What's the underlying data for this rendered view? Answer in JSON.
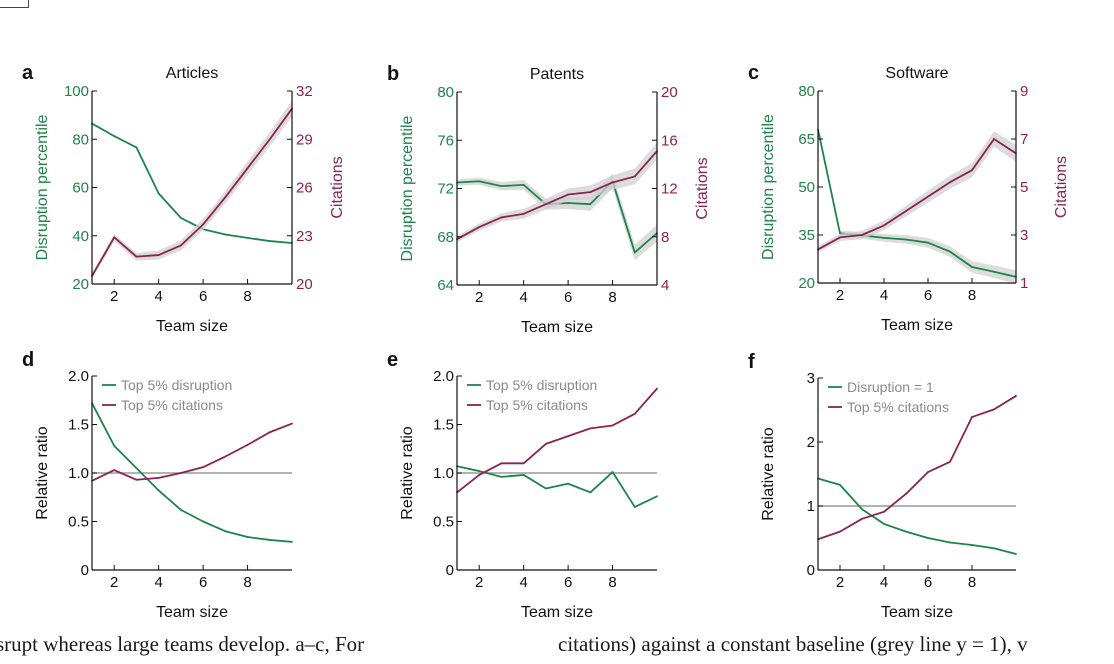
{
  "chart_data": [
    {
      "panel_label": "a",
      "type": "line",
      "title": "Articles",
      "xlabel": "Team size",
      "ylabel_left": "Disruption percentile",
      "ylabel_right": "Citations",
      "xlim": [
        1,
        10
      ],
      "xticks": [
        2,
        4,
        6,
        8
      ],
      "ylim_left": [
        20,
        100
      ],
      "yticks_left": [
        20,
        40,
        60,
        80,
        100
      ],
      "ylim_right": [
        20,
        32
      ],
      "yticks_right": [
        20,
        23,
        26,
        29,
        32
      ],
      "colors": {
        "left": "#1e8449",
        "right": "#8b2252",
        "band": "#d0d0d0"
      },
      "series": [
        {
          "axis": "left",
          "x": [
            1,
            2,
            3,
            4,
            5,
            6,
            7,
            8,
            9,
            10
          ],
          "values": [
            86.5,
            81.3,
            76.6,
            57.5,
            47.4,
            42.7,
            40.5,
            39.1,
            37.8,
            37.0
          ]
        },
        {
          "axis": "right",
          "x": [
            1,
            2,
            3,
            4,
            5,
            6,
            7,
            8,
            9,
            10
          ],
          "values": [
            20.5,
            22.9,
            21.7,
            21.8,
            22.4,
            23.7,
            25.4,
            27.2,
            29.0,
            30.9
          ],
          "band": 0.35
        }
      ]
    },
    {
      "panel_label": "b",
      "type": "line",
      "title": "Patents",
      "xlabel": "Team size",
      "ylabel_left": "Disruption percentile",
      "ylabel_right": "Citations",
      "xlim": [
        1,
        10
      ],
      "xticks": [
        2,
        4,
        6,
        8
      ],
      "ylim_left": [
        64,
        80
      ],
      "yticks_left": [
        64,
        68,
        72,
        76,
        80
      ],
      "ylim_right": [
        4,
        20
      ],
      "yticks_right": [
        4,
        8,
        12,
        16,
        20
      ],
      "colors": {
        "left": "#1e8449",
        "right": "#8b2252",
        "band": "#d0d0d0"
      },
      "series": [
        {
          "axis": "left",
          "x": [
            1,
            2,
            3,
            4,
            5,
            6,
            7,
            8,
            9,
            10
          ],
          "values": [
            72.5,
            72.6,
            72.2,
            72.3,
            70.7,
            70.8,
            70.7,
            72.6,
            66.7,
            68.3
          ],
          "band": 0.5
        },
        {
          "axis": "right",
          "x": [
            1,
            2,
            3,
            4,
            5,
            6,
            7,
            8,
            9,
            10
          ],
          "values": [
            7.8,
            8.8,
            9.6,
            9.9,
            10.7,
            11.5,
            11.7,
            12.5,
            13.0,
            15.1
          ],
          "band": 0.5
        }
      ]
    },
    {
      "panel_label": "c",
      "type": "line",
      "title": "Software",
      "xlabel": "Team size",
      "ylabel_left": "Disruption percentile",
      "ylabel_right": "Citations",
      "xlim": [
        1,
        10
      ],
      "xticks": [
        2,
        4,
        6,
        8
      ],
      "ylim_left": [
        20,
        80
      ],
      "yticks_left": [
        20,
        35,
        50,
        65,
        80
      ],
      "ylim_right": [
        1,
        9
      ],
      "yticks_right": [
        1,
        3,
        5,
        7,
        9
      ],
      "colors": {
        "left": "#1e8449",
        "right": "#8b2252",
        "band": "#d0d0d0"
      },
      "series": [
        {
          "axis": "left",
          "x": [
            1,
            2,
            3,
            4,
            5,
            6,
            7,
            8,
            9,
            10
          ],
          "values": [
            68.0,
            35.5,
            34.9,
            34.1,
            33.6,
            32.6,
            29.8,
            25.0,
            23.5,
            21.9
          ],
          "band": 1.5
        },
        {
          "axis": "right",
          "x": [
            1,
            2,
            3,
            4,
            5,
            6,
            7,
            8,
            9,
            10
          ],
          "values": [
            2.4,
            2.9,
            3.0,
            3.4,
            4.0,
            4.6,
            5.2,
            5.7,
            7.0,
            6.4
          ],
          "band": 0.25
        }
      ]
    },
    {
      "panel_label": "d",
      "type": "line",
      "xlabel": "Team size",
      "ylabel": "Relative ratio",
      "xlim": [
        1,
        10
      ],
      "xticks": [
        2,
        4,
        6,
        8
      ],
      "ylim": [
        0,
        2.0
      ],
      "yticks": [
        0,
        0.5,
        1.0,
        1.5,
        2.0
      ],
      "ytick_labels": [
        "0",
        "0.5",
        "1.0",
        "1.5",
        "2.0"
      ],
      "legend_position": "top-left",
      "baseline": 1.0,
      "colors": {
        "green": "#1e8449",
        "purple": "#8b2252",
        "baseline": "#9a9a9a"
      },
      "series": [
        {
          "name": "Top 5% disruption",
          "color": "green",
          "x": [
            1,
            2,
            3,
            4,
            5,
            6,
            7,
            8,
            9,
            10
          ],
          "values": [
            1.72,
            1.28,
            1.05,
            0.82,
            0.62,
            0.5,
            0.4,
            0.34,
            0.31,
            0.29
          ]
        },
        {
          "name": "Top 5% citations",
          "color": "purple",
          "x": [
            1,
            2,
            3,
            4,
            5,
            6,
            7,
            8,
            9,
            10
          ],
          "values": [
            0.92,
            1.03,
            0.93,
            0.95,
            1.0,
            1.06,
            1.17,
            1.29,
            1.42,
            1.51
          ]
        }
      ]
    },
    {
      "panel_label": "e",
      "type": "line",
      "xlabel": "Team size",
      "ylabel": "Relative ratio",
      "xlim": [
        1,
        10
      ],
      "xticks": [
        2,
        4,
        6,
        8
      ],
      "ylim": [
        0,
        2.0
      ],
      "yticks": [
        0,
        0.5,
        1.0,
        1.5,
        2.0
      ],
      "ytick_labels": [
        "0",
        "0.5",
        "1.0",
        "1.5",
        "2.0"
      ],
      "legend_position": "top-left",
      "baseline": 1.0,
      "colors": {
        "green": "#1e8449",
        "purple": "#8b2252",
        "baseline": "#9a9a9a"
      },
      "series": [
        {
          "name": "Top 5% disruption",
          "color": "green",
          "x": [
            1,
            2,
            3,
            4,
            5,
            6,
            7,
            8,
            9,
            10
          ],
          "values": [
            1.07,
            1.02,
            0.96,
            0.98,
            0.84,
            0.89,
            0.8,
            1.01,
            0.65,
            0.76
          ]
        },
        {
          "name": "Top 5% citations",
          "color": "purple",
          "x": [
            1,
            2,
            3,
            4,
            5,
            6,
            7,
            8,
            9,
            10
          ],
          "values": [
            0.8,
            0.98,
            1.1,
            1.1,
            1.3,
            1.38,
            1.46,
            1.49,
            1.61,
            1.87
          ]
        }
      ]
    },
    {
      "panel_label": "f",
      "type": "line",
      "xlabel": "Team size",
      "ylabel": "Relative ratio",
      "xlim": [
        1,
        10
      ],
      "xticks": [
        2,
        4,
        6,
        8
      ],
      "ylim": [
        0,
        3
      ],
      "yticks": [
        0,
        1,
        2,
        3
      ],
      "ytick_labels": [
        "0",
        "1",
        "2",
        "3"
      ],
      "legend_position": "top-left",
      "baseline": 1.0,
      "colors": {
        "green": "#1e8449",
        "purple": "#8b2252",
        "baseline": "#9a9a9a"
      },
      "series": [
        {
          "name": "Disruption = 1",
          "color": "green",
          "x": [
            1,
            2,
            3,
            4,
            5,
            6,
            7,
            8,
            9,
            10
          ],
          "values": [
            1.43,
            1.33,
            0.95,
            0.72,
            0.6,
            0.5,
            0.43,
            0.39,
            0.34,
            0.25
          ]
        },
        {
          "name": "Top 5% citations",
          "color": "purple",
          "x": [
            1,
            2,
            3,
            4,
            5,
            6,
            7,
            8,
            9,
            10
          ],
          "values": [
            0.48,
            0.6,
            0.8,
            0.91,
            1.19,
            1.53,
            1.69,
            2.39,
            2.51,
            2.72
          ]
        }
      ]
    }
  ],
  "caption": {
    "left": "srupt whereas large teams develop. a–c, For",
    "right": "citations) against a constant baseline (grey line y = 1), v"
  }
}
